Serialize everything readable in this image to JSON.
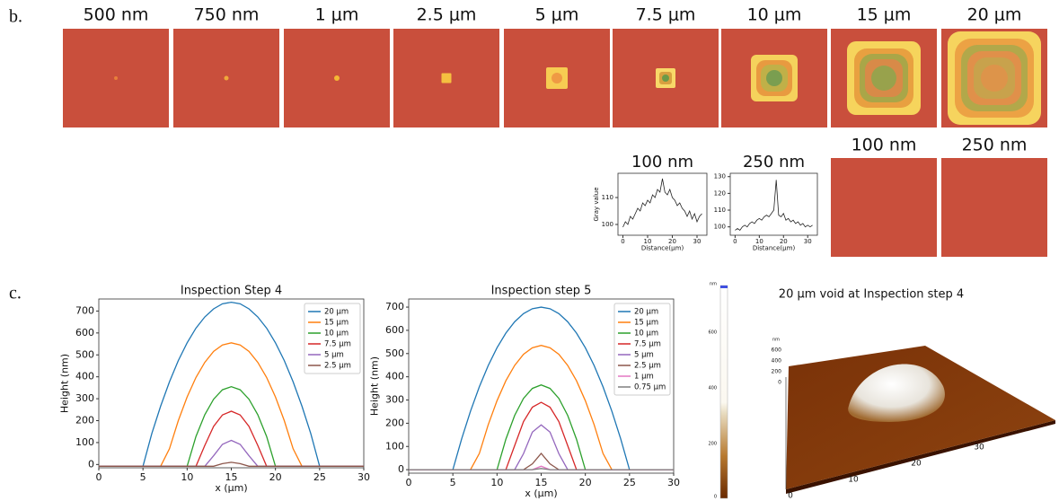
{
  "panels": [
    "b.",
    "c."
  ],
  "images": {
    "top": [
      "500 nm",
      "750 nm",
      "1 μm",
      "2.5 μm",
      "5 μm",
      "7.5 μm",
      "10 μm",
      "15 μm",
      "20 μm"
    ],
    "bottom": [
      "100 nm",
      "250 nm"
    ]
  },
  "colorbar": {
    "unit": "nm",
    "ticks": [
      600,
      400,
      200,
      0
    ]
  },
  "surface": {
    "title": "20 μm void at Inspection step 4",
    "z_unit": "nm",
    "z_ticks": [
      600,
      400,
      200,
      0
    ],
    "x_ticks": [
      0,
      10,
      20,
      30
    ]
  },
  "chart_data": [
    {
      "type": "line",
      "title": "Inspection Step 4",
      "x_label": "x (μm)",
      "y_label": "Height (nm)",
      "x": [
        0,
        1,
        2,
        3,
        4,
        5,
        6,
        7,
        8,
        9,
        10,
        11,
        12,
        13,
        14,
        15,
        16,
        17,
        18,
        19,
        20,
        21,
        22,
        23,
        24,
        25,
        26,
        27,
        28,
        29,
        30
      ],
      "xlim": [
        0,
        30
      ],
      "xticks": [
        0,
        5,
        10,
        15,
        20,
        25,
        30
      ],
      "ylim": [
        -15,
        755
      ],
      "yticks": [
        0,
        100,
        200,
        300,
        400,
        500,
        600,
        700
      ],
      "legend": "upper right",
      "series": [
        {
          "name": "20 μm",
          "color": "#1f77b4",
          "values": [
            -8,
            -8,
            -8,
            -8,
            -8,
            -8,
            141,
            266,
            377,
            474,
            555,
            622,
            673,
            710,
            733,
            740,
            733,
            710,
            673,
            622,
            555,
            474,
            377,
            266,
            141,
            -8,
            -8,
            -8,
            -8,
            -8,
            -8
          ]
        },
        {
          "name": "15 μm",
          "color": "#ff7f0e",
          "values": [
            -8,
            -8,
            -8,
            -8,
            -8,
            -8,
            -8,
            -8,
            72,
            200,
            308,
            397,
            466,
            516,
            545,
            555,
            545,
            516,
            466,
            397,
            308,
            200,
            72,
            -8,
            -8,
            -8,
            -8,
            -8,
            -8,
            -8,
            -8
          ]
        },
        {
          "name": "10 μm",
          "color": "#2ca02c",
          "values": [
            -8,
            -8,
            -8,
            -8,
            -8,
            -8,
            -8,
            -8,
            -8,
            -8,
            -8,
            128,
            227,
            298,
            341,
            355,
            341,
            298,
            227,
            128,
            -8,
            -8,
            -8,
            -8,
            -8,
            -8,
            -8,
            -8,
            -8,
            -8,
            -8
          ]
        },
        {
          "name": "7.5 μm",
          "color": "#d62728",
          "values": [
            -8,
            -8,
            -8,
            -8,
            -8,
            -8,
            -8,
            -8,
            -8,
            -8,
            -8,
            -8,
            87,
            174,
            226,
            243,
            226,
            174,
            87,
            -8,
            -8,
            -8,
            -8,
            -8,
            -8,
            -8,
            -8,
            -8,
            -8,
            -8,
            -8
          ]
        },
        {
          "name": "5 μm",
          "color": "#9467bd",
          "values": [
            -8,
            -8,
            -8,
            -8,
            -8,
            -8,
            -8,
            -8,
            -8,
            -8,
            -8,
            -8,
            -8,
            40,
            92,
            110,
            92,
            40,
            -8,
            -8,
            -8,
            -8,
            -8,
            -8,
            -8,
            -8,
            -8,
            -8,
            -8,
            -8,
            -8
          ]
        },
        {
          "name": "2.5 μm",
          "color": "#8c564b",
          "values": [
            -8,
            -8,
            -8,
            -8,
            -8,
            -8,
            -8,
            -8,
            -8,
            -8,
            -8,
            -8,
            -8,
            -8,
            4,
            10,
            4,
            -8,
            -8,
            -8,
            -8,
            -8,
            -8,
            -8,
            -8,
            -8,
            -8,
            -8,
            -8,
            -8,
            -8
          ]
        }
      ]
    },
    {
      "type": "line",
      "title": "Inspection step 5",
      "x_label": "x (μm)",
      "y_label": "Height (nm)",
      "x": [
        0,
        1,
        2,
        3,
        4,
        5,
        6,
        7,
        8,
        9,
        10,
        11,
        12,
        13,
        14,
        15,
        16,
        17,
        18,
        19,
        20,
        21,
        22,
        23,
        24,
        25,
        26,
        27,
        28,
        29,
        30
      ],
      "xlim": [
        0,
        30
      ],
      "xticks": [
        0,
        5,
        10,
        15,
        20,
        25,
        30
      ],
      "ylim": [
        -15,
        735
      ],
      "yticks": [
        0,
        100,
        200,
        300,
        400,
        500,
        600,
        700
      ],
      "legend": "upper right",
      "series": [
        {
          "name": "20 μm",
          "color": "#1f77b4",
          "values": [
            0,
            0,
            0,
            0,
            0,
            0,
            133,
            252,
            357,
            448,
            525,
            588,
            637,
            672,
            693,
            700,
            693,
            672,
            637,
            588,
            525,
            448,
            357,
            252,
            133,
            0,
            0,
            0,
            0,
            0,
            0
          ]
        },
        {
          "name": "15 μm",
          "color": "#ff7f0e",
          "values": [
            0,
            0,
            0,
            0,
            0,
            0,
            0,
            0,
            70,
            193,
            297,
            383,
            449,
            497,
            525,
            535,
            525,
            497,
            449,
            383,
            297,
            193,
            70,
            0,
            0,
            0,
            0,
            0,
            0,
            0,
            0
          ]
        },
        {
          "name": "10 μm",
          "color": "#2ca02c",
          "values": [
            0,
            0,
            0,
            0,
            0,
            0,
            0,
            0,
            0,
            0,
            0,
            131,
            234,
            307,
            350,
            365,
            350,
            307,
            234,
            131,
            0,
            0,
            0,
            0,
            0,
            0,
            0,
            0,
            0,
            0,
            0
          ]
        },
        {
          "name": "7.5 μm",
          "color": "#d62728",
          "values": [
            0,
            0,
            0,
            0,
            0,
            0,
            0,
            0,
            0,
            0,
            0,
            0,
            104,
            207,
            269,
            290,
            269,
            207,
            104,
            0,
            0,
            0,
            0,
            0,
            0,
            0,
            0,
            0,
            0,
            0,
            0
          ]
        },
        {
          "name": "5 μm",
          "color": "#9467bd",
          "values": [
            0,
            0,
            0,
            0,
            0,
            0,
            0,
            0,
            0,
            0,
            0,
            0,
            0,
            69,
            162,
            193,
            162,
            69,
            0,
            0,
            0,
            0,
            0,
            0,
            0,
            0,
            0,
            0,
            0,
            0,
            0
          ]
        },
        {
          "name": "2.5 μm",
          "color": "#8c564b",
          "values": [
            0,
            0,
            0,
            0,
            0,
            0,
            0,
            0,
            0,
            0,
            0,
            0,
            0,
            0,
            25,
            70,
            25,
            0,
            0,
            0,
            0,
            0,
            0,
            0,
            0,
            0,
            0,
            0,
            0,
            0,
            0
          ]
        },
        {
          "name": "1 μm",
          "color": "#e377c2",
          "values": [
            0,
            0,
            0,
            0,
            0,
            0,
            0,
            0,
            0,
            0,
            0,
            0,
            0,
            0,
            0,
            15,
            0,
            0,
            0,
            0,
            0,
            0,
            0,
            0,
            0,
            0,
            0,
            0,
            0,
            0,
            0
          ]
        },
        {
          "name": "0.75 μm",
          "color": "#7f7f7f",
          "values": [
            0,
            0,
            0,
            0,
            0,
            0,
            0,
            0,
            0,
            0,
            0,
            0,
            0,
            0,
            0,
            5,
            0,
            0,
            0,
            0,
            0,
            0,
            0,
            0,
            0,
            0,
            0,
            0,
            0,
            0,
            0
          ]
        }
      ]
    },
    {
      "type": "line",
      "title": "100 nm",
      "x_label": "Distance(μm)",
      "y_label": "Gray value",
      "x": [
        0,
        1,
        2,
        3,
        4,
        5,
        6,
        7,
        8,
        9,
        10,
        11,
        12,
        13,
        14,
        15,
        16,
        17,
        18,
        19,
        20,
        21,
        22,
        23,
        24,
        25,
        26,
        27,
        28,
        29,
        30,
        31,
        32
      ],
      "xlim": [
        -2,
        34
      ],
      "xticks": [
        0,
        10,
        20,
        30
      ],
      "ylim": [
        96,
        119
      ],
      "yticks": [
        100,
        110
      ],
      "series": [
        {
          "color": "#222222",
          "values": [
            99,
            101,
            100,
            103,
            102,
            104,
            106,
            105,
            108,
            107,
            109,
            108,
            111,
            110,
            113,
            112,
            117,
            112,
            111,
            113,
            110,
            109,
            107,
            108,
            106,
            105,
            103,
            105,
            102,
            104,
            101,
            103,
            104
          ]
        }
      ]
    },
    {
      "type": "line",
      "title": "250 nm",
      "x_label": "Distance(μm)",
      "x": [
        0,
        1,
        2,
        3,
        4,
        5,
        6,
        7,
        8,
        9,
        10,
        11,
        12,
        13,
        14,
        15,
        16,
        17,
        18,
        19,
        20,
        21,
        22,
        23,
        24,
        25,
        26,
        27,
        28,
        29,
        30,
        31,
        32
      ],
      "xlim": [
        -2,
        34
      ],
      "xticks": [
        0,
        10,
        20,
        30
      ],
      "ylim": [
        95,
        132
      ],
      "yticks": [
        100,
        110,
        120,
        130
      ],
      "series": [
        {
          "color": "#222222",
          "values": [
            98,
            99,
            98,
            100,
            101,
            100,
            102,
            103,
            102,
            104,
            105,
            104,
            106,
            107,
            106,
            108,
            110,
            128,
            107,
            106,
            108,
            104,
            105,
            103,
            104,
            102,
            103,
            101,
            102,
            100,
            101,
            100,
            101
          ]
        }
      ]
    }
  ]
}
